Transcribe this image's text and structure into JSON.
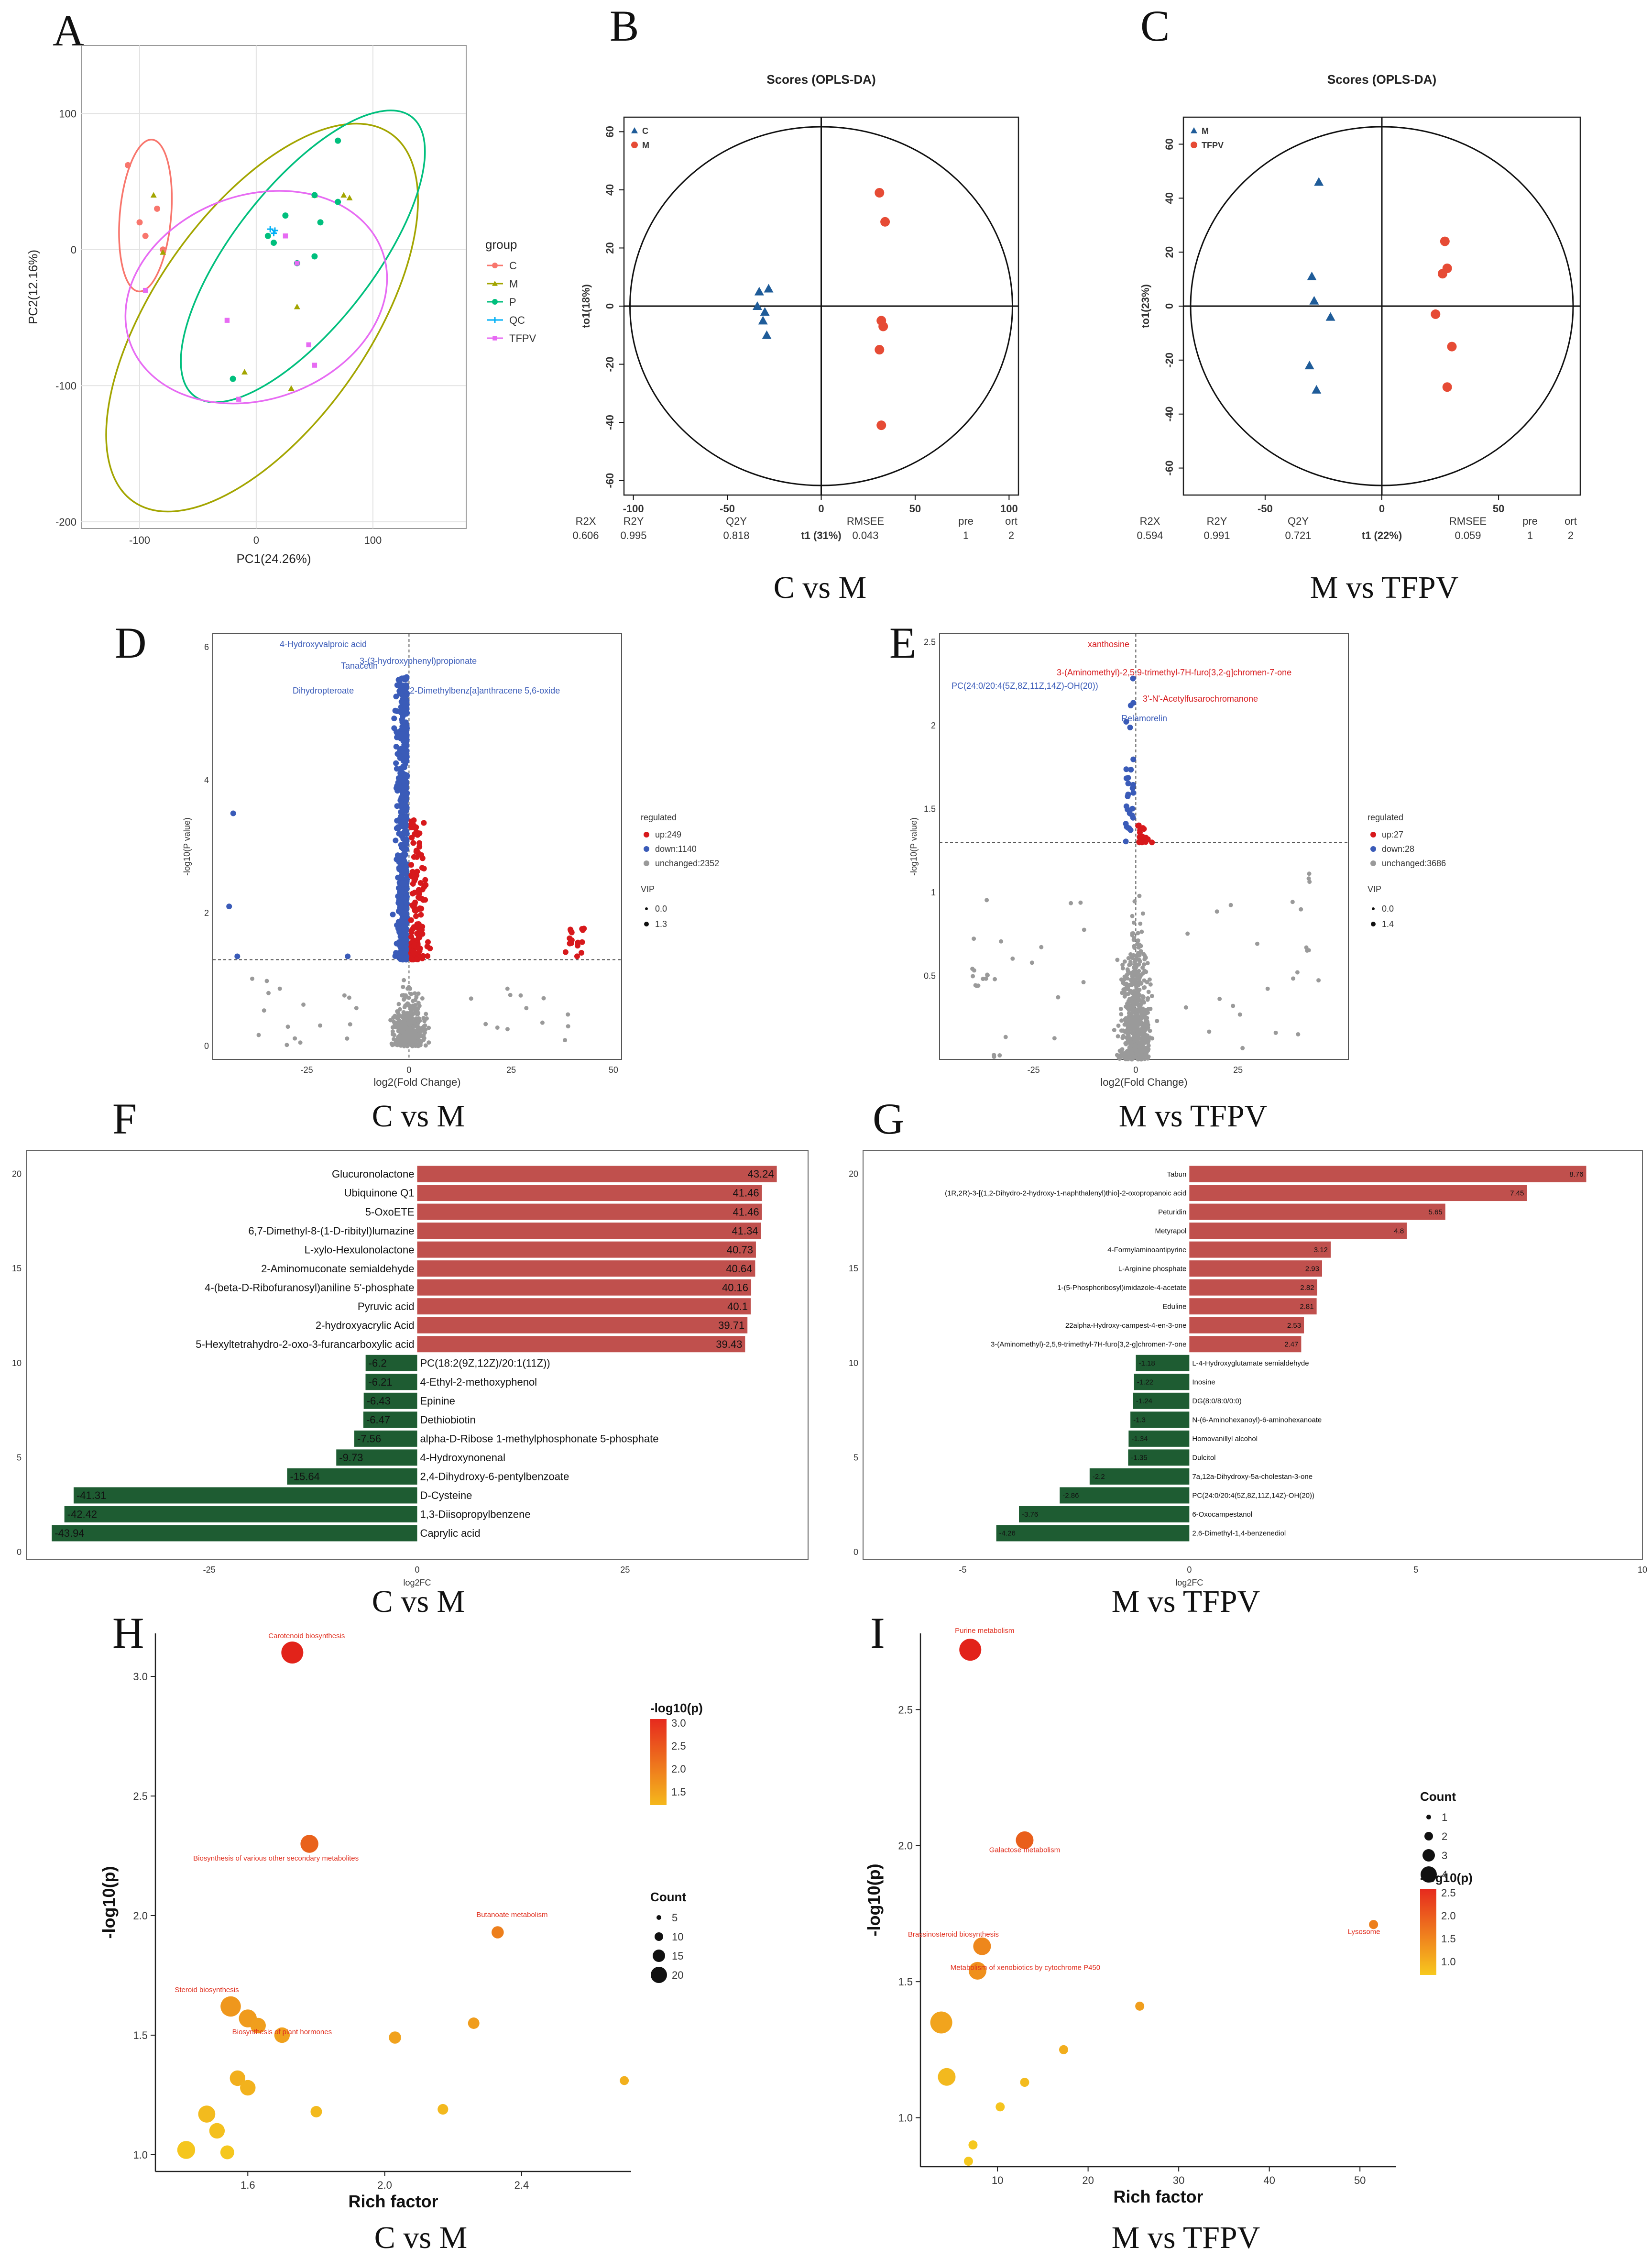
{
  "figure": {
    "panels": [
      "A",
      "B",
      "C",
      "D",
      "E",
      "F",
      "G",
      "H",
      "I"
    ]
  },
  "chart_data": [
    {
      "id": "A",
      "type": "scatter",
      "xlabel": "PC1(24.26%)",
      "ylabel": "PC2(12.16%)",
      "xticks": [
        -100,
        0,
        100
      ],
      "yticks": [
        -200,
        -100,
        0,
        100
      ],
      "xlim": [
        -150,
        180
      ],
      "ylim": [
        -205,
        150
      ],
      "legend_title": "group",
      "series": [
        {
          "name": "C",
          "color": "#F8766D",
          "shape": "circle",
          "x": [
            -110,
            -100,
            -95,
            -85,
            -80
          ],
          "y": [
            62,
            20,
            10,
            30,
            0
          ]
        },
        {
          "name": "M",
          "color": "#A3A500",
          "shape": "triangle",
          "x": [
            -88,
            -80,
            50,
            75,
            80,
            35,
            -10,
            30
          ],
          "y": [
            40,
            -2,
            40,
            40,
            38,
            -42,
            -90,
            -102
          ]
        },
        {
          "name": "P",
          "color": "#00BF7D",
          "shape": "circle",
          "x": [
            70,
            70,
            55,
            50,
            50,
            35,
            25,
            15,
            10,
            -20
          ],
          "y": [
            80,
            35,
            20,
            -5,
            40,
            -10,
            25,
            5,
            10,
            -95
          ]
        },
        {
          "name": "QC",
          "color": "#00B0F6",
          "shape": "cross",
          "x": [
            12,
            15,
            16
          ],
          "y": [
            15,
            12,
            14
          ]
        },
        {
          "name": "TFPV",
          "color": "#E76BF3",
          "shape": "square",
          "x": [
            -95,
            -25,
            25,
            35,
            45,
            50,
            -15
          ],
          "y": [
            -30,
            -52,
            10,
            -10,
            -70,
            -85,
            -110
          ]
        }
      ]
    },
    {
      "id": "B",
      "type": "scatter",
      "title": "Scores (OPLS-DA)",
      "xlabel": "t1 (31%)",
      "ylabel": "to1(18%)",
      "xticks": [
        -100,
        -50,
        0,
        50,
        100
      ],
      "yticks": [
        -60,
        -40,
        -20,
        0,
        20,
        40,
        60
      ],
      "xlim": [
        -105,
        105
      ],
      "ylim": [
        -65,
        65
      ],
      "series": [
        {
          "name": "C",
          "color": "#1F5C99",
          "shape": "triangle",
          "x": [
            -33,
            -28,
            -30,
            -31,
            -34,
            -29
          ],
          "y": [
            5,
            6,
            -2,
            -5,
            0,
            -10
          ]
        },
        {
          "name": "M",
          "color": "#E64B35",
          "shape": "circle",
          "x": [
            31,
            34,
            32,
            33,
            31,
            32
          ],
          "y": [
            39,
            29,
            -5,
            -7,
            -15,
            -41
          ]
        }
      ],
      "stats_headers": [
        "R2X",
        "R2Y",
        "Q2Y",
        "RMSEE",
        "pre",
        "ort"
      ],
      "stats_values": [
        "0.606",
        "0.995",
        "0.818",
        "0.043",
        "1",
        "2"
      ],
      "caption": "C vs M"
    },
    {
      "id": "C",
      "type": "scatter",
      "title": "Scores (OPLS-DA)",
      "xlabel": "t1 (22%)",
      "ylabel": "to1(23%)",
      "xticks": [
        -50,
        0,
        50
      ],
      "yticks": [
        -60,
        -40,
        -20,
        0,
        20,
        40,
        60
      ],
      "xlim": [
        -85,
        85
      ],
      "ylim": [
        -70,
        70
      ],
      "series": [
        {
          "name": "M",
          "color": "#1F5C99",
          "shape": "triangle",
          "x": [
            -27,
            -30,
            -29,
            -22,
            -31,
            -28
          ],
          "y": [
            46,
            11,
            2,
            -4,
            -22,
            -31
          ]
        },
        {
          "name": "TFPV",
          "color": "#E64B35",
          "shape": "circle",
          "x": [
            27,
            28,
            26,
            23,
            30,
            28
          ],
          "y": [
            24,
            14,
            12,
            -3,
            -15,
            -30
          ]
        }
      ],
      "stats_headers": [
        "R2X",
        "R2Y",
        "Q2Y",
        "RMSEE",
        "pre",
        "ort"
      ],
      "stats_values": [
        "0.594",
        "0.991",
        "0.721",
        "0.059",
        "1",
        "2"
      ],
      "caption": "M vs TFPV"
    },
    {
      "id": "D",
      "type": "scatter",
      "xlabel": "log2(Fold Change)",
      "ylabel": "-log10(P value)",
      "xticks": [
        -25,
        0,
        25,
        50
      ],
      "yticks": [
        0,
        2,
        4,
        6
      ],
      "xlim": [
        -48,
        52
      ],
      "ylim": [
        -0.2,
        6.2
      ],
      "threshold_y": 1.3,
      "legend_title": "regulated",
      "legend": [
        "up:249",
        "down:1140",
        "unchanged:2352"
      ],
      "vip_title": "VIP",
      "vip_labels": [
        "0.0",
        "1.3"
      ],
      "annotations": [
        "4-Hydroxyvalproic acid",
        "3-(3-hydroxyphenyl)propionate",
        "Tanacetin",
        "Dihydropteroate",
        "7,12-Dimethylbenz[a]anthracene 5,6-oxide"
      ],
      "outliers_down": {
        "x": [
          -43,
          -42,
          -44,
          -15
        ],
        "y": [
          3.5,
          1.35,
          2.1,
          1.35
        ]
      },
      "caption": "C vs M"
    },
    {
      "id": "E",
      "type": "scatter",
      "xlabel": "log2(Fold Change)",
      "ylabel": "-log10(P value)",
      "xticks": [
        -25,
        0,
        25
      ],
      "yticks": [
        0.5,
        1.0,
        1.5,
        2.0,
        2.5
      ],
      "xlim": [
        -48,
        52
      ],
      "ylim": [
        0,
        2.55
      ],
      "threshold_y": 1.3,
      "legend_title": "regulated",
      "legend": [
        "up:27",
        "down:28",
        "unchanged:3686"
      ],
      "vip_title": "VIP",
      "vip_labels": [
        "0.0",
        "1.4"
      ],
      "annotations_up": [
        "xanthosine",
        "3-(Aminomethyl)-2,5,9-trimethyl-7H-furo[3,2-g]chromen-7-one",
        "3'-N'-Acetylfusarochromanone"
      ],
      "annotations_down": [
        "PC(24:0/20:4(5Z,8Z,11Z,14Z)-OH(20))",
        "Relamorelin"
      ],
      "caption": "M vs TFPV"
    },
    {
      "id": "F",
      "type": "bar",
      "xlabel": "log2FC",
      "xticks": [
        -25,
        0,
        25
      ],
      "yticks": [
        0,
        5,
        10,
        15,
        20
      ],
      "xlim": [
        -47,
        47
      ],
      "up_color": "#C0504D",
      "down_color": "#1E5C32",
      "categories": [
        "Glucuronolactone",
        "Ubiquinone Q1",
        "5-OxoETE",
        "6,7-Dimethyl-8-(1-D-ribityl)lumazine",
        "L-xylo-Hexulonolactone",
        "2-Aminomuconate semialdehyde",
        "4-(beta-D-Ribofuranosyl)aniline 5'-phosphate",
        "Pyruvic acid",
        "2-hydroxyacrylic Acid",
        "5-Hexyltetrahydro-2-oxo-3-furancarboxylic acid",
        "PC(18:2(9Z,12Z)/20:1(11Z))",
        "4-Ethyl-2-methoxyphenol",
        "Epinine",
        "Dethiobiotin",
        "alpha-D-Ribose 1-methylphosphonate 5-phosphate",
        "4-Hydroxynonenal",
        "2,4-Dihydroxy-6-pentylbenzoate",
        "D-Cysteine",
        "1,3-Diisopropylbenzene",
        "Caprylic acid"
      ],
      "values": [
        43.24,
        41.46,
        41.46,
        41.34,
        40.73,
        40.64,
        40.16,
        40.1,
        39.71,
        39.43,
        -6.2,
        -6.21,
        -6.43,
        -6.47,
        -7.56,
        -9.73,
        -15.64,
        -41.31,
        -42.42,
        -43.94
      ],
      "labels": [
        "43.24",
        "41.46",
        "41.46",
        "41.34",
        "40.73",
        "40.64",
        "40.16",
        "40.1",
        "39.71",
        "39.43",
        "-6.2",
        "-6.21",
        "-6.43",
        "-6.47",
        "-7.56",
        "-9.73",
        "-15.64",
        "-41.31",
        "-42.42",
        "-43.94"
      ],
      "caption": "C vs M"
    },
    {
      "id": "G",
      "type": "bar",
      "xlabel": "log2FC",
      "xticks": [
        -5,
        0,
        5,
        10
      ],
      "yticks": [
        0,
        5,
        10,
        15,
        20
      ],
      "xlim": [
        -7.2,
        10
      ],
      "up_color": "#C0504D",
      "down_color": "#1E5C32",
      "categories": [
        "Tabun",
        "(1R,2R)-3-[(1,2-Dihydro-2-hydroxy-1-naphthalenyl)thio]-2-oxopropanoic acid",
        "Peturidin",
        "Metyrapol",
        "4-Formylaminoantipyrine",
        "L-Arginine phosphate",
        "1-(5-Phosphoribosyl)imidazole-4-acetate",
        "Eduline",
        "22alpha-Hydroxy-campest-4-en-3-one",
        "3-(Aminomethyl)-2,5,9-trimethyl-7H-furo[3,2-g]chromen-7-one",
        "L-4-Hydroxyglutamate semialdehyde",
        "Inosine",
        "DG(8:0/8:0/0:0)",
        "N-(6-Aminohexanoyl)-6-aminohexanoate",
        "Homovanillyl alcohol",
        "Dulcitol",
        "7a,12a-Dihydroxy-5a-cholestan-3-one",
        "PC(24:0/20:4(5Z,8Z,11Z,14Z)-OH(20))",
        "6-Oxocampestanol",
        "2,6-Dimethyl-1,4-benzenediol"
      ],
      "values": [
        8.76,
        7.45,
        5.65,
        4.8,
        3.12,
        2.93,
        2.82,
        2.81,
        2.53,
        2.47,
        -1.18,
        -1.22,
        -1.24,
        -1.3,
        -1.34,
        -1.35,
        -2.2,
        -2.86,
        -3.76,
        -4.26
      ],
      "labels": [
        "8.76",
        "7.45",
        "5.65",
        "4.8",
        "3.12",
        "2.93",
        "2.82",
        "2.81",
        "2.53",
        "2.47",
        "-1.18",
        "-1.22",
        "-1.24",
        "-1.3",
        "-1.34",
        "-1.35",
        "-2.2",
        "-2.86",
        "-3.76",
        "-4.26"
      ],
      "caption": "M vs TFPV"
    },
    {
      "id": "H",
      "type": "scatter",
      "xlabel": "Rich factor",
      "ylabel": "-log10(p)",
      "xticks": [
        1.6,
        2.0,
        2.4
      ],
      "xtick_labels": [
        "1.6",
        "2.0",
        "2.4"
      ],
      "yticks": [
        1.0,
        1.5,
        2.0,
        2.5,
        3.0
      ],
      "xlim": [
        1.33,
        2.72
      ],
      "ylim": [
        0.93,
        3.18
      ],
      "color_title": "-log10(p)",
      "color_ticks": [
        "3.0",
        "2.5",
        "2.0",
        "1.5"
      ],
      "size_title": "Count",
      "size_ticks": [
        "5",
        "10",
        "15",
        "20"
      ],
      "points": {
        "x": [
          1.73,
          1.78,
          2.33,
          1.55,
          1.6,
          1.63,
          1.7,
          2.03,
          2.26,
          2.7,
          1.57,
          1.6,
          1.8,
          2.17,
          1.48,
          1.51,
          1.42,
          1.54
        ],
        "y": [
          3.1,
          2.3,
          1.93,
          1.62,
          1.57,
          1.54,
          1.5,
          1.49,
          1.55,
          1.31,
          1.32,
          1.28,
          1.18,
          1.19,
          1.17,
          1.1,
          1.02,
          1.01
        ],
        "count": [
          20,
          15,
          8,
          18,
          15,
          12,
          12,
          8,
          7,
          4,
          12,
          12,
          7,
          6,
          14,
          12,
          15,
          10
        ],
        "labels": [
          "Carotenoid biosynthesis",
          "Biosynthesis of various other secondary metabolites",
          "Butanoate metabolism",
          "Steroid biosynthesis",
          "",
          "",
          "Biosynthesis of plant hormones",
          "",
          "",
          "",
          "",
          "",
          "",
          "",
          "",
          "",
          "",
          ""
        ]
      },
      "caption": "C vs M"
    },
    {
      "id": "I",
      "type": "scatter",
      "xlabel": "Rich factor",
      "ylabel": "-log10(p)",
      "xticks": [
        10,
        20,
        30,
        40,
        50
      ],
      "yticks": [
        1.0,
        1.5,
        2.0,
        2.5
      ],
      "xlim": [
        1.5,
        54
      ],
      "ylim": [
        0.82,
        2.78
      ],
      "color_title": "-log10(p)",
      "color_ticks": [
        "2.5",
        "2.0",
        "1.5",
        "1.0"
      ],
      "size_title": "Count",
      "size_ticks": [
        "1",
        "2",
        "3",
        "4"
      ],
      "points": {
        "x": [
          7,
          13,
          8.3,
          7.8,
          51.5,
          25.7,
          17.3,
          3.8,
          4.4,
          13,
          10.3,
          7.3,
          6.8
        ],
        "y": [
          2.72,
          2.02,
          1.63,
          1.54,
          1.71,
          1.41,
          1.25,
          1.35,
          1.15,
          1.13,
          1.04,
          0.9,
          0.84
        ],
        "count": [
          4,
          3,
          3,
          3,
          1,
          1,
          1,
          4,
          3,
          1,
          1,
          1,
          1
        ],
        "labels": [
          "Purine metabolism",
          "Galactose metabolism",
          "Brassinosteroid biosynthesis",
          "Metabolism of xenobiotics by cytochrome P450",
          "Lysosome",
          "",
          "",
          "",
          "",
          "",
          "",
          "",
          ""
        ]
      },
      "caption": "M vs TFPV"
    }
  ]
}
